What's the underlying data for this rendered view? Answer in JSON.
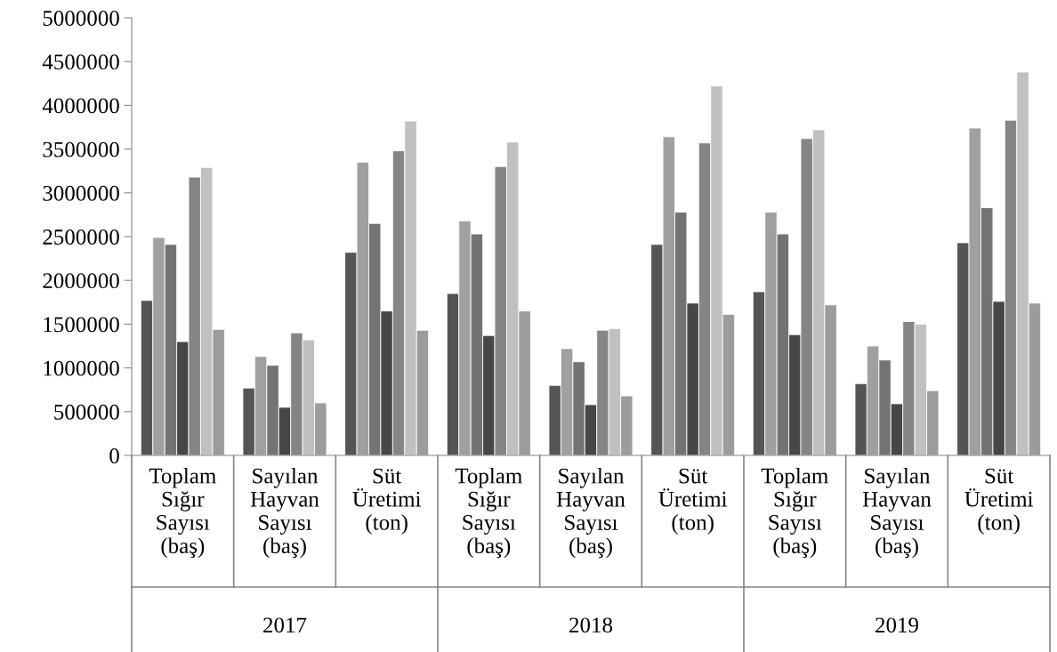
{
  "chart_data": {
    "type": "bar",
    "categories": [
      "Toplam\nSığır\nSayısı\n(baş)",
      "Sayılan\nHayvan\nSayısı\n(baş)",
      "Süt\nÜretimi\n(ton)",
      "Toplam\nSığır\nSayısı\n(baş)",
      "Sayılan\nHayvan\nSayısı\n(baş)",
      "Süt\nÜretimi\n(ton)",
      "Toplam\nSığır\nSayısı\n(baş)",
      "Sayılan\nHayvan\nSayısı\n(baş)",
      "Süt\nÜretimi\n(ton)"
    ],
    "series": [
      {
        "color": "#555555",
        "values": [
          1770000,
          770000,
          2320000,
          1850000,
          800000,
          2410000,
          1870000,
          820000,
          2430000
        ]
      },
      {
        "color": "#a0a0a0",
        "values": [
          2490000,
          1130000,
          3350000,
          2680000,
          1220000,
          3640000,
          2780000,
          1250000,
          3740000
        ]
      },
      {
        "color": "#737373",
        "values": [
          2410000,
          1030000,
          2650000,
          2530000,
          1070000,
          2780000,
          2530000,
          1090000,
          2830000
        ]
      },
      {
        "color": "#464646",
        "values": [
          1300000,
          550000,
          1650000,
          1370000,
          580000,
          1740000,
          1380000,
          590000,
          1760000
        ]
      },
      {
        "color": "#858585",
        "values": [
          3180000,
          1400000,
          3480000,
          3300000,
          1430000,
          3570000,
          3620000,
          1530000,
          3830000
        ]
      },
      {
        "color": "#c0c0c0",
        "values": [
          3290000,
          1320000,
          3820000,
          3580000,
          1450000,
          4220000,
          3720000,
          1500000,
          4380000
        ]
      },
      {
        "color": "#9c9c9c",
        "values": [
          1440000,
          600000,
          1430000,
          1650000,
          680000,
          1610000,
          1720000,
          740000,
          1740000
        ]
      }
    ],
    "annotations": [
      "2017",
      "2018",
      "2019"
    ],
    "ylim": [
      0,
      5000000
    ],
    "yticks": [
      0,
      500000,
      1000000,
      1500000,
      2000000,
      2500000,
      3000000,
      3500000,
      4000000,
      4500000,
      5000000
    ],
    "grid": false,
    "legend": false
  }
}
